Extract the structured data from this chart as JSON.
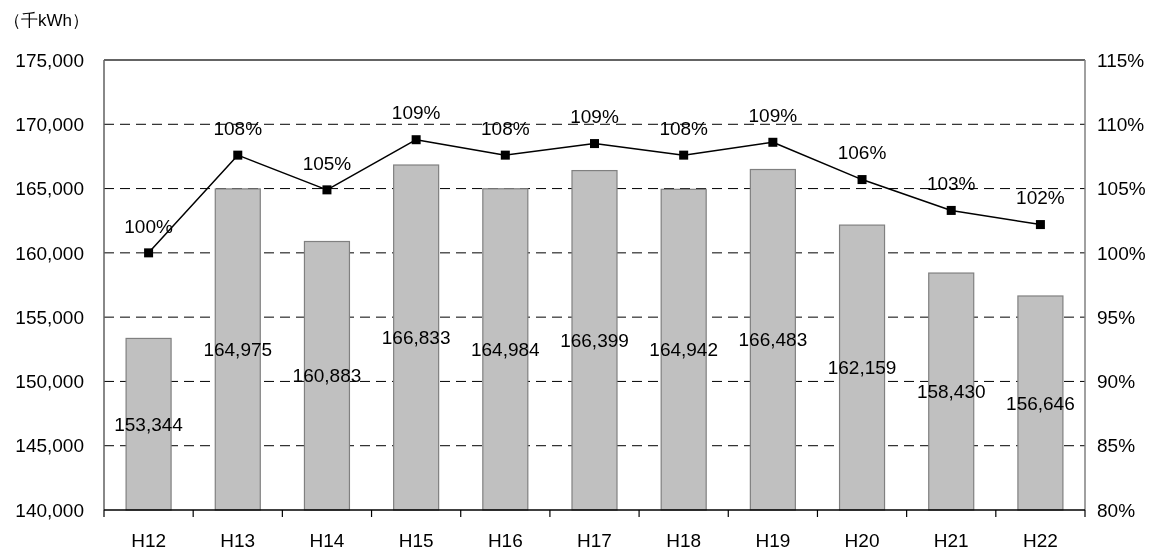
{
  "chart_data": {
    "type": "bar",
    "ylabel": "（千kWh）",
    "categories": [
      "H12",
      "H13",
      "H14",
      "H15",
      "H16",
      "H17",
      "H18",
      "H19",
      "H20",
      "H21",
      "H22"
    ],
    "series": [
      {
        "color": "#c0c0c0",
        "values": [
          153344,
          164975,
          160883,
          166833,
          164984,
          166399,
          164942,
          166483,
          162159,
          158430,
          156646
        ],
        "value_labels": [
          "153,344",
          "164,975",
          "160,883",
          "166,833",
          "164,984",
          "166,399",
          "164,942",
          "166,483",
          "162,159",
          "158,430",
          "156,646"
        ]
      },
      {
        "type": "line",
        "axis": "y2",
        "color": "#000000",
        "marker": "square",
        "line_style": "solid",
        "values": [
          100,
          107.6,
          104.9,
          108.8,
          107.6,
          108.5,
          107.6,
          108.6,
          105.7,
          103.3,
          102.2
        ],
        "value_labels": [
          "100%",
          "108%",
          "105%",
          "109%",
          "108%",
          "109%",
          "108%",
          "109%",
          "106%",
          "103%",
          "102%"
        ]
      }
    ],
    "ylim": [
      140000,
      175000
    ],
    "yticks": [
      {
        "value": 140000,
        "label": "140,000"
      },
      {
        "value": 145000,
        "label": "145,000"
      },
      {
        "value": 150000,
        "label": "150,000"
      },
      {
        "value": 155000,
        "label": "155,000"
      },
      {
        "value": 160000,
        "label": "160,000"
      },
      {
        "value": 165000,
        "label": "165,000"
      },
      {
        "value": 170000,
        "label": "170,000"
      },
      {
        "value": 175000,
        "label": "175,000"
      }
    ],
    "y2lim": [
      80,
      115
    ],
    "y2ticks": [
      {
        "value": 80,
        "label": "80%"
      },
      {
        "value": 85,
        "label": "85%"
      },
      {
        "value": 90,
        "label": "90%"
      },
      {
        "value": 95,
        "label": "95%"
      },
      {
        "value": 100,
        "label": "100%"
      },
      {
        "value": 105,
        "label": "105%"
      },
      {
        "value": 110,
        "label": "110%"
      },
      {
        "value": 115,
        "label": "115%"
      }
    ],
    "grid": "y"
  }
}
